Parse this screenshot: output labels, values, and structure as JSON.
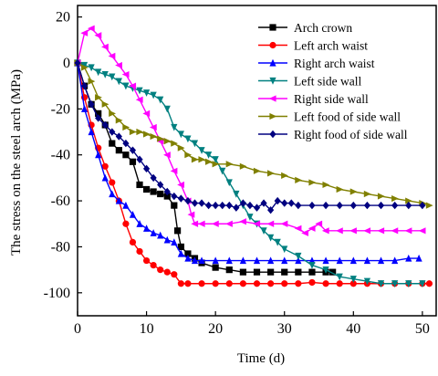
{
  "chart_data": {
    "type": "line",
    "title": "",
    "xlabel": "Time (d)",
    "ylabel": "The stress on the steel arch (MPa)",
    "xlim": [
      0,
      52
    ],
    "ylim": [
      -110,
      25
    ],
    "xticks": [
      0,
      10,
      20,
      30,
      40,
      50
    ],
    "yticks": [
      20,
      0,
      -20,
      -40,
      -60,
      -80,
      -100
    ],
    "grid": false,
    "legend_position": "top-right",
    "series": [
      {
        "name": "Arch crown",
        "color": "#000000",
        "marker": "square",
        "x": [
          0,
          1,
          2,
          3,
          4,
          5,
          6,
          7,
          8,
          9,
          10,
          11,
          12,
          13,
          14,
          14.5,
          15,
          16,
          17,
          18,
          20,
          22,
          24,
          26,
          28,
          30,
          32,
          34,
          36,
          37
        ],
        "y": [
          0,
          -10,
          -18,
          -22,
          -27,
          -35,
          -38,
          -40,
          -43,
          -53,
          -55,
          -56,
          -57,
          -58,
          -62,
          -73,
          -80,
          -83,
          -85,
          -87,
          -89,
          -90,
          -91,
          -91,
          -91,
          -91,
          -91,
          -91,
          -91,
          -91
        ]
      },
      {
        "name": "Left arch waist",
        "color": "#ff0000",
        "marker": "circle",
        "x": [
          0,
          1,
          2,
          3,
          4,
          5,
          6,
          7,
          8,
          9,
          10,
          11,
          12,
          13,
          14,
          15,
          16,
          18,
          20,
          22,
          24,
          26,
          28,
          30,
          32,
          34,
          36,
          38,
          40,
          42,
          44,
          46,
          48,
          50,
          51
        ],
        "y": [
          0,
          -15,
          -27,
          -37,
          -45,
          -52,
          -60,
          -70,
          -78,
          -82,
          -86,
          -88,
          -90,
          -91,
          -92,
          -96,
          -96,
          -96,
          -96,
          -96,
          -96,
          -96,
          -96,
          -96,
          -96,
          -95.5,
          -96,
          -96,
          -96,
          -96,
          -96,
          -96,
          -96,
          -96,
          -96
        ]
      },
      {
        "name": "Right arch waist",
        "color": "#0000ff",
        "marker": "triangle-up",
        "x": [
          0,
          1,
          2,
          3,
          4,
          5,
          6,
          7,
          8,
          9,
          10,
          11,
          12,
          13,
          14,
          15,
          16,
          17,
          18,
          20,
          22,
          24,
          26,
          28,
          30,
          32,
          34,
          36,
          38,
          40,
          42,
          44,
          46,
          48,
          49.5
        ],
        "y": [
          0,
          -20,
          -30,
          -40,
          -50,
          -57,
          -60,
          -62,
          -66,
          -70,
          -72,
          -74,
          -75,
          -77,
          -78,
          -83,
          -85,
          -86,
          -86,
          -86,
          -86,
          -86,
          -86,
          -86,
          -86,
          -86,
          -86,
          -86,
          -86,
          -86,
          -86,
          -86,
          -86,
          -85,
          -85
        ]
      },
      {
        "name": "Left side wall",
        "color": "#008080",
        "marker": "triangle-down",
        "x": [
          0,
          1,
          2,
          3,
          4,
          5,
          6,
          7,
          8,
          9,
          10,
          11,
          12,
          13,
          14,
          15,
          16,
          17,
          18,
          19,
          20,
          21,
          22,
          23,
          24,
          25,
          26,
          27,
          28,
          29,
          30,
          32,
          34,
          36,
          38,
          40,
          42,
          44,
          46,
          48,
          50
        ],
        "y": [
          0,
          -1,
          -2,
          -4,
          -5,
          -6,
          -8,
          -10,
          -11,
          -12,
          -13,
          -14,
          -16,
          -20,
          -28,
          -31,
          -33,
          -35,
          -38,
          -40,
          -42,
          -47,
          -52,
          -57,
          -62,
          -67,
          -70,
          -73,
          -76,
          -78,
          -81,
          -84,
          -88,
          -90,
          -93,
          -94,
          -95,
          -96,
          -96,
          -96,
          -96
        ]
      },
      {
        "name": "Right side wall",
        "color": "#ff00ff",
        "marker": "triangle-left",
        "x": [
          0,
          1,
          2,
          3,
          4,
          5,
          6,
          7,
          8,
          9,
          10,
          11,
          12,
          13,
          14,
          15,
          16,
          16.5,
          17,
          18,
          20,
          22,
          24,
          26,
          28,
          30,
          32,
          33,
          34,
          35,
          36,
          38,
          40,
          42,
          44,
          46,
          48,
          50
        ],
        "y": [
          0,
          13,
          15,
          12,
          7,
          3,
          -1,
          -5,
          -10,
          -16,
          -22,
          -28,
          -34,
          -40,
          -47,
          -53,
          -60,
          -66,
          -70,
          -70,
          -70,
          -70,
          -69,
          -70,
          -70,
          -70,
          -72,
          -74,
          -72,
          -70,
          -73,
          -73,
          -73,
          -73,
          -73,
          -73,
          -73,
          -73
        ]
      },
      {
        "name": "Left food of side wall",
        "color": "#808000",
        "marker": "triangle-right",
        "x": [
          0,
          1,
          2,
          3,
          4,
          5,
          6,
          7,
          8,
          9,
          10,
          11,
          12,
          13,
          14,
          15,
          16,
          17,
          18,
          19,
          20,
          22,
          24,
          26,
          28,
          30,
          32,
          34,
          36,
          38,
          40,
          42,
          44,
          46,
          48,
          50,
          51
        ],
        "y": [
          0,
          -2,
          -8,
          -15,
          -18,
          -22,
          -25,
          -28,
          -30,
          -30,
          -31,
          -32,
          -33,
          -34,
          -35,
          -37,
          -40,
          -42,
          -42,
          -43,
          -44,
          -44,
          -45,
          -47,
          -48,
          -49,
          -51,
          -52,
          -53,
          -55,
          -56,
          -57,
          -58,
          -59,
          -60,
          -61,
          -62
        ]
      },
      {
        "name": "Right food of side wall",
        "color": "#000080",
        "marker": "diamond",
        "x": [
          0,
          1,
          2,
          3,
          4,
          5,
          6,
          7,
          8,
          9,
          10,
          11,
          12,
          13,
          14,
          15,
          16,
          17,
          18,
          19,
          20,
          21,
          22,
          23,
          24,
          25,
          26,
          27,
          28,
          29,
          30,
          31,
          32,
          34,
          36,
          38,
          40,
          42,
          44,
          46,
          48,
          50
        ],
        "y": [
          0,
          -10,
          -18,
          -24,
          -27,
          -30,
          -32,
          -35,
          -38,
          -42,
          -46,
          -50,
          -53,
          -56,
          -58,
          -59,
          -60,
          -61,
          -61,
          -62,
          -62,
          -62,
          -62,
          -63,
          -61,
          -62,
          -63,
          -61,
          -64,
          -60,
          -61,
          -61,
          -62,
          -62,
          -62,
          -62,
          -62,
          -62,
          -62,
          -62,
          -62,
          -62
        ]
      }
    ]
  }
}
